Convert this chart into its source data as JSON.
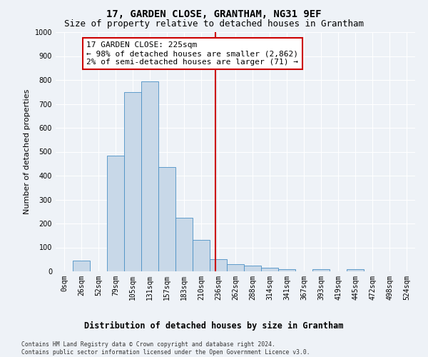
{
  "title": "17, GARDEN CLOSE, GRANTHAM, NG31 9EF",
  "subtitle": "Size of property relative to detached houses in Grantham",
  "xlabel_bottom": "Distribution of detached houses by size in Grantham",
  "ylabel": "Number of detached properties",
  "bar_color": "#c8d8e8",
  "bar_edge_color": "#4a90c4",
  "bar_width": 1.0,
  "categories": [
    "0sqm",
    "26sqm",
    "52sqm",
    "79sqm",
    "105sqm",
    "131sqm",
    "157sqm",
    "183sqm",
    "210sqm",
    "236sqm",
    "262sqm",
    "288sqm",
    "314sqm",
    "341sqm",
    "367sqm",
    "393sqm",
    "419sqm",
    "445sqm",
    "472sqm",
    "498sqm",
    "524sqm"
  ],
  "values": [
    0,
    45,
    0,
    485,
    750,
    795,
    435,
    225,
    130,
    50,
    30,
    25,
    15,
    10,
    0,
    8,
    0,
    10,
    0,
    0,
    0
  ],
  "ylim": [
    0,
    1000
  ],
  "yticks": [
    0,
    100,
    200,
    300,
    400,
    500,
    600,
    700,
    800,
    900,
    1000
  ],
  "vline_x_index": 8.85,
  "vline_color": "#cc0000",
  "annotation_text": "17 GARDEN CLOSE: 225sqm\n← 98% of detached houses are smaller (2,862)\n2% of semi-detached houses are larger (71) →",
  "annotation_box_color": "#ffffff",
  "annotation_box_edge": "#cc0000",
  "background_color": "#eef2f7",
  "grid_color": "#ffffff",
  "footnote": "Contains HM Land Registry data © Crown copyright and database right 2024.\nContains public sector information licensed under the Open Government Licence v3.0.",
  "title_fontsize": 10,
  "subtitle_fontsize": 9,
  "annotation_fontsize": 8,
  "tick_fontsize": 7,
  "ylabel_fontsize": 8
}
